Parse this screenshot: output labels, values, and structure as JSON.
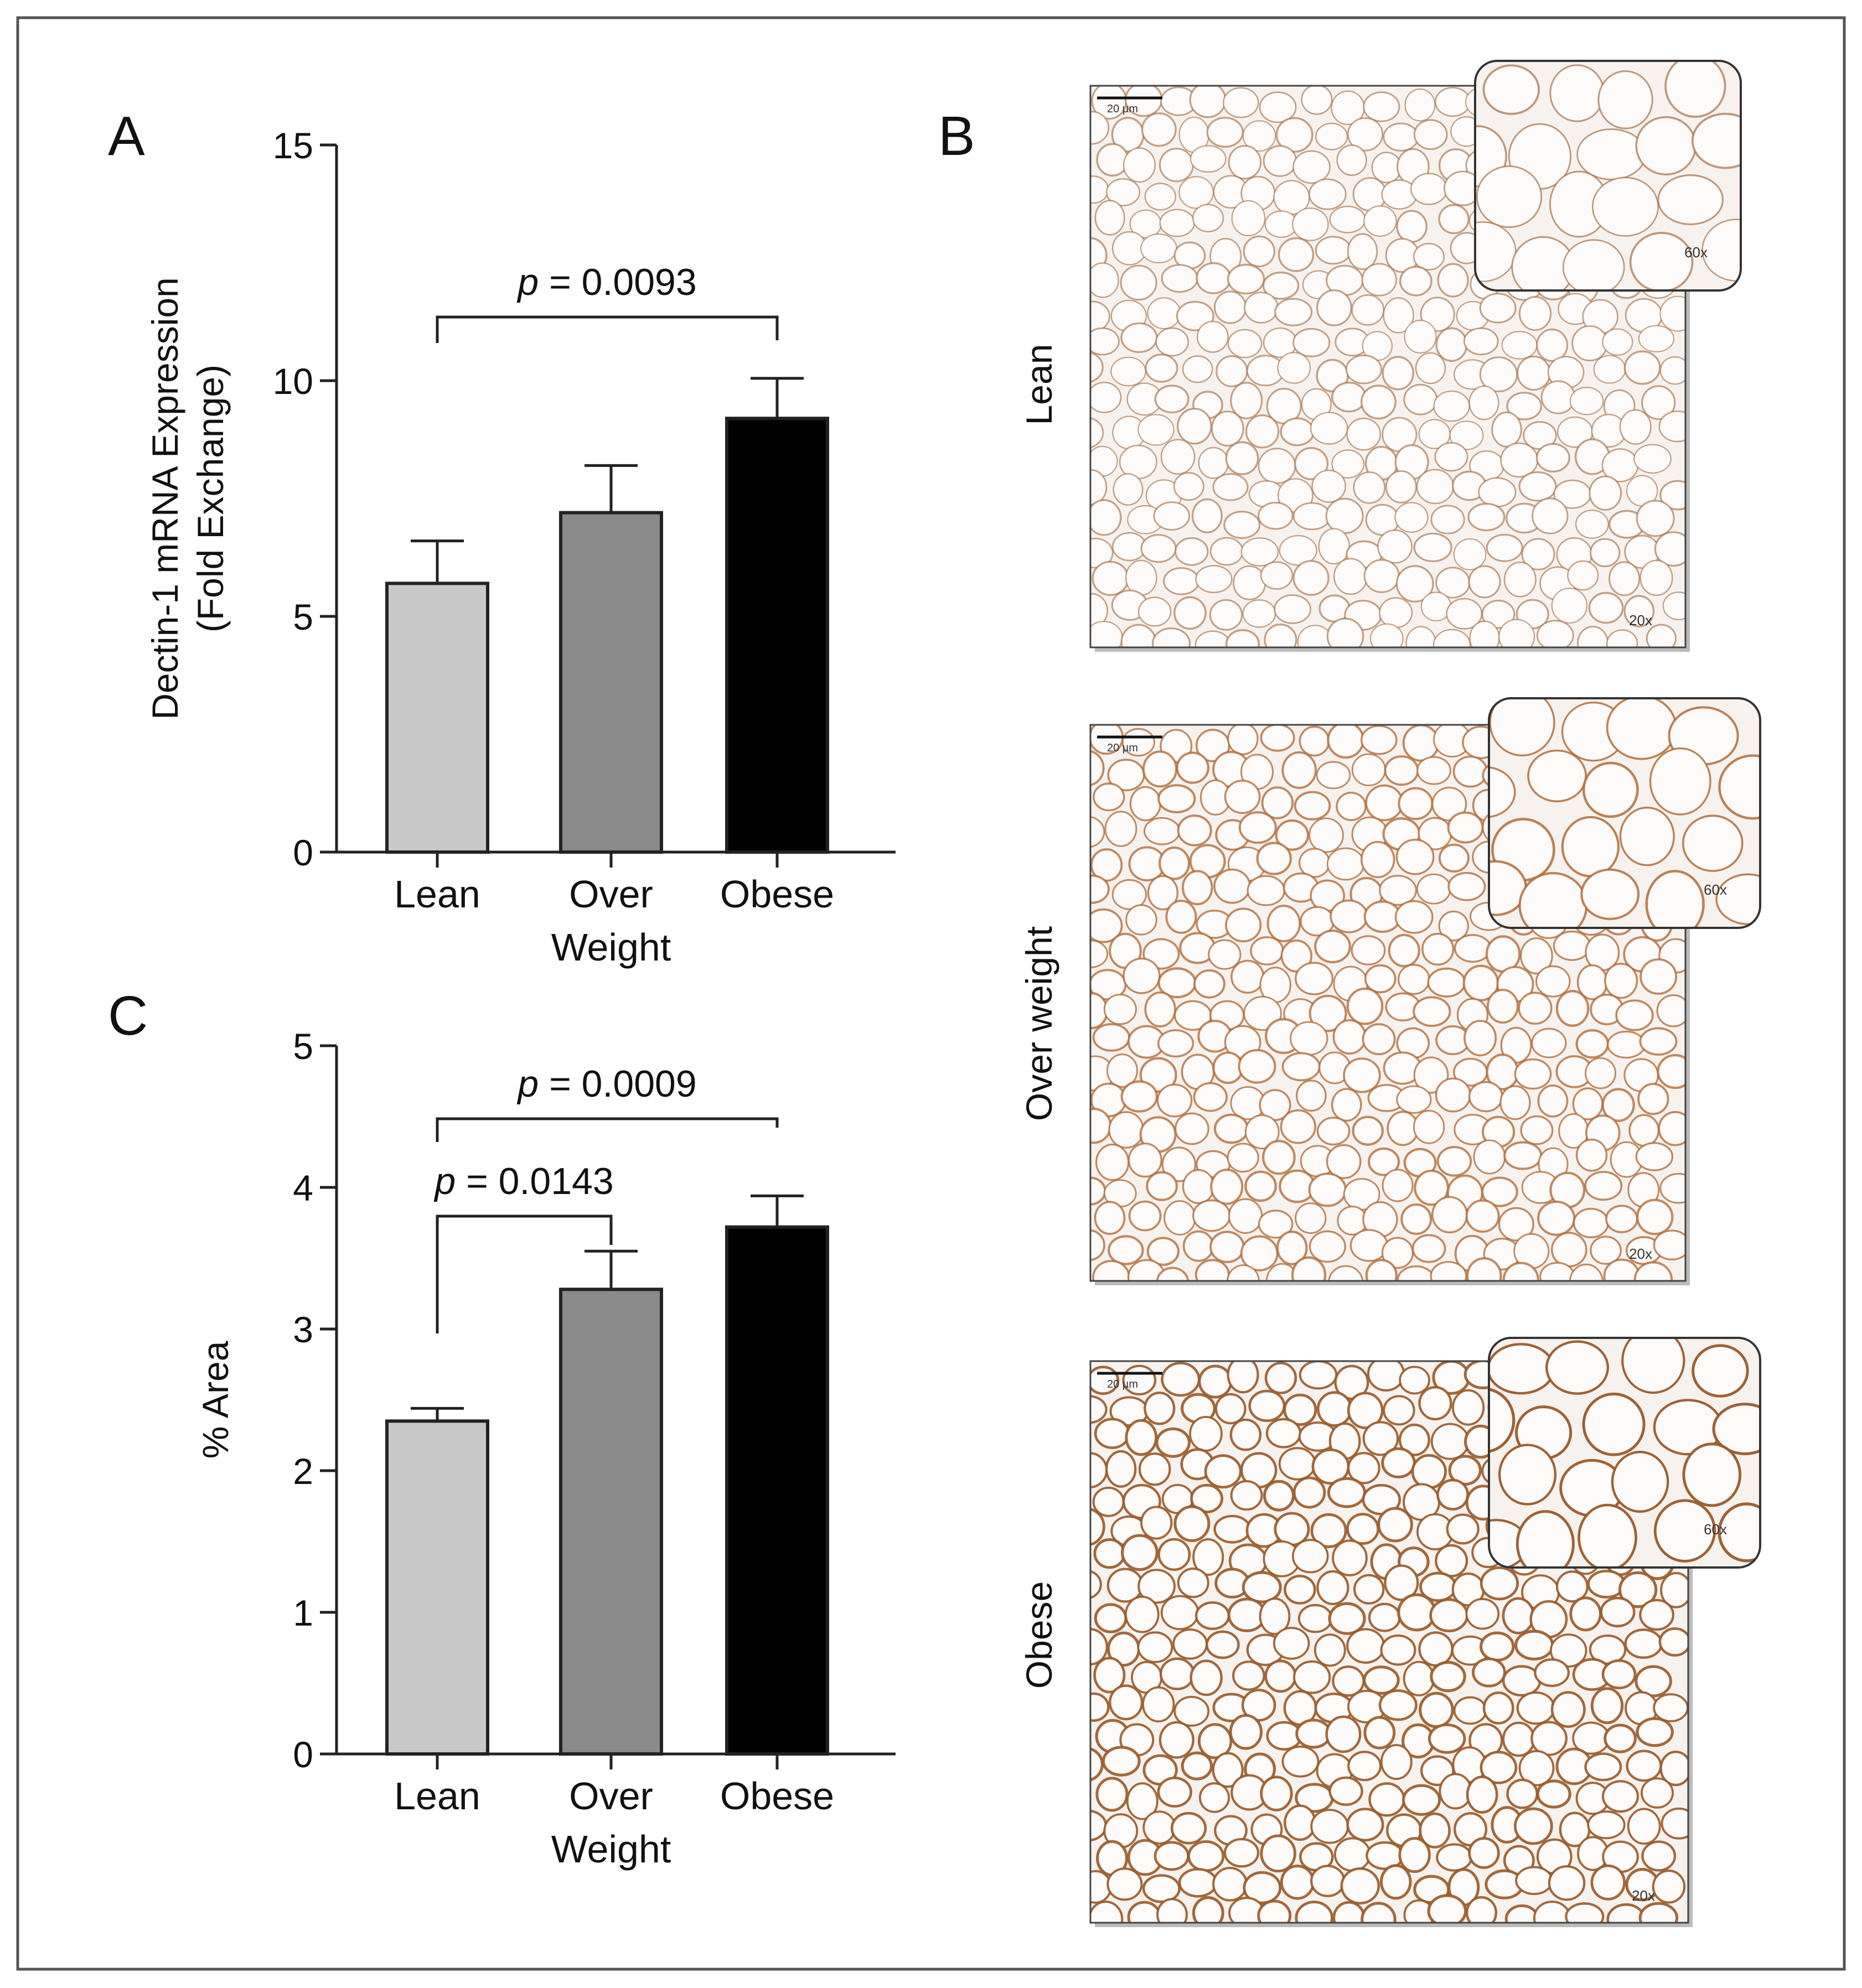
{
  "panels": {
    "A": {
      "letter": "A"
    },
    "B": {
      "letter": "B"
    },
    "C": {
      "letter": "C"
    }
  },
  "chart_data": [
    {
      "panel": "A",
      "type": "bar",
      "categories": [
        "Lean",
        "Over Weight",
        "Obese"
      ],
      "category_lines": [
        [
          "Lean"
        ],
        [
          "Over",
          "Weight"
        ],
        [
          "Obese"
        ]
      ],
      "values": [
        5.7,
        7.2,
        9.2
      ],
      "errors": [
        0.9,
        1.0,
        0.85
      ],
      "bar_colors": [
        "#c8c8c8",
        "#8a8a8a",
        "#000000"
      ],
      "ylabel_lines": [
        "Dectin-1 mRNA Expression",
        "(Fold Exchange)"
      ],
      "xlabel": "",
      "ylim": [
        0,
        15
      ],
      "yticks": [
        0,
        5,
        10,
        15
      ],
      "significance": [
        {
          "from": 0,
          "to": 2,
          "p_symbol": "p",
          "p_text": " = 0.0093"
        }
      ]
    },
    {
      "panel": "C",
      "type": "bar",
      "categories": [
        "Lean",
        "Over Weight",
        "Obese"
      ],
      "category_lines": [
        [
          "Lean"
        ],
        [
          "Over",
          "Weight"
        ],
        [
          "Obese"
        ]
      ],
      "values": [
        2.35,
        3.28,
        3.72
      ],
      "errors": [
        0.09,
        0.27,
        0.22
      ],
      "bar_colors": [
        "#c8c8c8",
        "#8a8a8a",
        "#000000"
      ],
      "ylabel_lines": [
        "% Area"
      ],
      "xlabel": "",
      "ylim": [
        0,
        5
      ],
      "yticks": [
        0,
        1,
        2,
        3,
        4,
        5
      ],
      "significance": [
        {
          "from": 0,
          "to": 1,
          "p_symbol": "p",
          "p_text": " = 0.0143"
        },
        {
          "from": 0,
          "to": 2,
          "p_symbol": "p",
          "p_text": " = 0.0009"
        }
      ]
    }
  ],
  "micrographs": [
    {
      "label": "Lean",
      "mag_main": "20x",
      "mag_inset": "60x",
      "scale_bar": "20 µm",
      "stain": "#a8724a",
      "density": 0.25
    },
    {
      "label": "Over weight",
      "mag_main": "20x",
      "mag_inset": "60x",
      "scale_bar": "20 µm",
      "stain": "#b06a35",
      "density": 0.55
    },
    {
      "label": "Obese",
      "mag_main": "20x",
      "mag_inset": "60x",
      "scale_bar": "20 µm",
      "stain": "#9a5a2a",
      "density": 0.9
    }
  ]
}
